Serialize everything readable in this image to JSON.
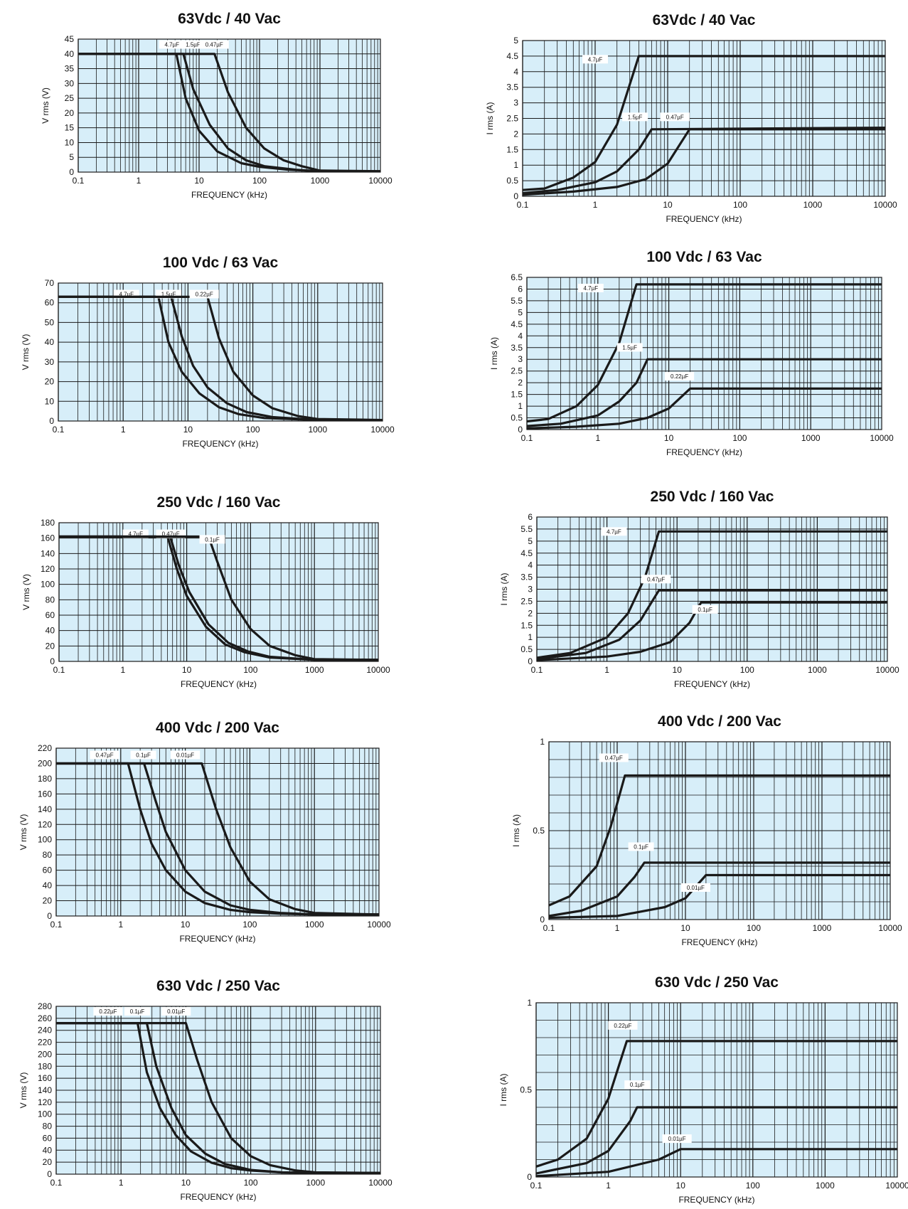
{
  "style": {
    "plot_background": "#d7eef9",
    "curve_color": "#1a1a1a",
    "grid_color": "#1a1a1a"
  },
  "chart_data": [
    {
      "type": "line",
      "title": "63Vdc / 40 Vac",
      "xlabel": "FREQUENCY (kHz)",
      "ylabel": "V rms (V)",
      "xscale": "log",
      "xlim": [
        0.1,
        10000
      ],
      "ylim": [
        0,
        45
      ],
      "xticks": [
        "0.1",
        "1",
        "10",
        "100",
        "1000",
        "10000"
      ],
      "yticks": [
        "0",
        "5",
        "10",
        "15",
        "20",
        "25",
        "30",
        "35",
        "40",
        "45"
      ],
      "series": [
        {
          "name": "4.7µF",
          "x": [
            0.1,
            4.2,
            6,
            10,
            20,
            50,
            100,
            300,
            1000,
            10000
          ],
          "y": [
            40,
            40,
            25,
            14,
            7,
            3,
            1.8,
            0.8,
            0.3,
            0.3
          ]
        },
        {
          "name": "1.5µF",
          "x": [
            0.1,
            5.5,
            8,
            15,
            30,
            60,
            120,
            400,
            1000,
            10000
          ],
          "y": [
            40,
            40,
            28,
            16,
            8,
            4,
            2,
            0.8,
            0.3,
            0.3
          ]
        },
        {
          "name": "0.47µF",
          "x": [
            0.1,
            18,
            30,
            60,
            120,
            250,
            500,
            1000,
            10000
          ],
          "y": [
            40,
            40,
            27,
            15,
            8,
            4,
            2,
            0.5,
            0.3
          ]
        }
      ]
    },
    {
      "type": "line",
      "title": "63Vdc / 40 Vac",
      "xlabel": "FREQUENCY (kHz)",
      "ylabel": "I rms (A)",
      "xscale": "log",
      "xlim": [
        0.1,
        10000
      ],
      "ylim": [
        0,
        5
      ],
      "xticks": [
        "0.1",
        "1",
        "10",
        "100",
        "1000",
        "10000"
      ],
      "yticks": [
        "0",
        "0.5",
        "1",
        "1.5",
        "2",
        "2.5",
        "3",
        "3.5",
        "4",
        "4.5",
        "5"
      ],
      "series": [
        {
          "name": "4.7µF",
          "x": [
            0.1,
            0.2,
            0.5,
            1,
            2,
            4,
            10000
          ],
          "y": [
            0.2,
            0.25,
            0.6,
            1.1,
            2.3,
            4.5,
            4.5
          ]
        },
        {
          "name": "1.5µF",
          "x": [
            0.1,
            0.3,
            1,
            2,
            4,
            6,
            10000
          ],
          "y": [
            0.1,
            0.2,
            0.45,
            0.8,
            1.5,
            2.15,
            2.2
          ]
        },
        {
          "name": "0.47µF",
          "x": [
            0.1,
            0.5,
            2,
            5,
            10,
            20,
            10000
          ],
          "y": [
            0.05,
            0.15,
            0.3,
            0.55,
            1.05,
            2.15,
            2.15
          ]
        }
      ]
    },
    {
      "type": "line",
      "title": "100 Vdc / 63 Vac",
      "xlabel": "FREQUENCY (kHz)",
      "ylabel": "V rms (V)",
      "xscale": "log",
      "xlim": [
        0.1,
        10000
      ],
      "ylim": [
        0,
        70
      ],
      "xticks": [
        "0.1",
        "1",
        "10",
        "100",
        "1000",
        "10000"
      ],
      "yticks": [
        "0",
        "10",
        "20",
        "30",
        "40",
        "50",
        "60",
        "70"
      ],
      "series": [
        {
          "name": "4.7µF",
          "x": [
            0.1,
            3.5,
            5,
            8,
            15,
            30,
            60,
            150,
            1000,
            10000
          ],
          "y": [
            63,
            63,
            40,
            25,
            14,
            7,
            3.5,
            1.5,
            0.5,
            0.5
          ]
        },
        {
          "name": "1.5µF",
          "x": [
            0.1,
            5.5,
            8,
            12,
            20,
            40,
            80,
            200,
            1000,
            10000
          ],
          "y": [
            63,
            63,
            43,
            28,
            17,
            9,
            4.5,
            2,
            0.5,
            0.5
          ]
        },
        {
          "name": "0.22µF",
          "x": [
            0.1,
            20,
            30,
            50,
            100,
            200,
            500,
            1000,
            10000
          ],
          "y": [
            63,
            63,
            42,
            25,
            13,
            6.5,
            2.5,
            1,
            0.5
          ]
        }
      ]
    },
    {
      "type": "line",
      "title": "100 Vdc / 63 Vac",
      "xlabel": "FREQUENCY (kHz)",
      "ylabel": "I rms (A)",
      "xscale": "log",
      "xlim": [
        0.1,
        10000
      ],
      "ylim": [
        0,
        6.5
      ],
      "xticks": [
        "0.1",
        "1",
        "10",
        "100",
        "1000",
        "10000"
      ],
      "yticks": [
        "0",
        "0.5",
        "1",
        "1.5",
        "2",
        "2.5",
        "3",
        "3.5",
        "4",
        "4.5",
        "5",
        "5.5",
        "6",
        "6.5"
      ],
      "series": [
        {
          "name": "4.7µF",
          "x": [
            0.1,
            0.2,
            0.5,
            1,
            2,
            3.5,
            10000
          ],
          "y": [
            0.35,
            0.45,
            1.0,
            1.9,
            3.7,
            6.2,
            6.2
          ]
        },
        {
          "name": "1.5µF",
          "x": [
            0.1,
            0.3,
            1,
            2,
            3.5,
            5,
            10000
          ],
          "y": [
            0.15,
            0.25,
            0.6,
            1.2,
            2.0,
            3.0,
            3.0
          ]
        },
        {
          "name": "0.22µF",
          "x": [
            0.1,
            0.5,
            2,
            5,
            10,
            20,
            10000
          ],
          "y": [
            0.05,
            0.12,
            0.25,
            0.5,
            0.9,
            1.75,
            1.75
          ]
        }
      ]
    },
    {
      "type": "line",
      "title": "250 Vdc / 160 Vac",
      "xlabel": "FREQUENCY (kHz)",
      "ylabel": "V rms (V)",
      "xscale": "log",
      "xlim": [
        0.1,
        10000
      ],
      "ylim": [
        0,
        180
      ],
      "xticks": [
        "0.1",
        "1",
        "10",
        "100",
        "1000",
        "10000"
      ],
      "yticks": [
        "0",
        "20",
        "40",
        "60",
        "80",
        "100",
        "120",
        "140",
        "160",
        "180"
      ],
      "series": [
        {
          "name": "4.7µF",
          "x": [
            0.1,
            5,
            7,
            10,
            20,
            40,
            80,
            200,
            1000,
            10000
          ],
          "y": [
            162,
            162,
            120,
            85,
            45,
            22,
            12,
            5,
            2,
            2
          ]
        },
        {
          "name": "0.47µF",
          "x": [
            0.1,
            5.5,
            7.5,
            11,
            22,
            45,
            90,
            200,
            1000,
            10000
          ],
          "y": [
            162,
            162,
            125,
            90,
            48,
            24,
            13,
            6,
            2,
            2
          ]
        },
        {
          "name": "0.1µF",
          "x": [
            0.1,
            22,
            30,
            50,
            100,
            200,
            500,
            1000,
            10000
          ],
          "y": [
            162,
            162,
            130,
            80,
            42,
            20,
            8,
            3,
            2
          ]
        }
      ]
    },
    {
      "type": "line",
      "title": "250 Vdc / 160 Vac",
      "xlabel": "FREQUENCY (kHz)",
      "ylabel": "I rms (A)",
      "xscale": "log",
      "xlim": [
        0.1,
        10000
      ],
      "ylim": [
        0,
        6
      ],
      "xticks": [
        "0.1",
        "1",
        "10",
        "100",
        "1000",
        "10000"
      ],
      "yticks": [
        "0",
        "0.5",
        "1",
        "1.5",
        "2",
        "2.5",
        "3",
        "3.5",
        "4",
        "4.5",
        "5",
        "5.5",
        "6"
      ],
      "series": [
        {
          "name": "4.7µF",
          "x": [
            0.1,
            0.3,
            1,
            2,
            3.5,
            5.5,
            10000
          ],
          "y": [
            0.15,
            0.35,
            1.0,
            2.0,
            3.5,
            5.4,
            5.4
          ]
        },
        {
          "name": "0.47µF",
          "x": [
            0.1,
            0.5,
            1.5,
            3,
            5.5,
            10000
          ],
          "y": [
            0.1,
            0.35,
            0.9,
            1.7,
            2.95,
            2.95
          ]
        },
        {
          "name": "0.1µF",
          "x": [
            0.1,
            1,
            3,
            8,
            15,
            22,
            10000
          ],
          "y": [
            0.05,
            0.2,
            0.4,
            0.8,
            1.6,
            2.45,
            2.45
          ]
        }
      ]
    },
    {
      "type": "line",
      "title": "400 Vdc / 200 Vac",
      "xlabel": "FREQUENCY (kHz)",
      "ylabel": "V rms (V)",
      "xscale": "log",
      "xlim": [
        0.1,
        10000
      ],
      "ylim": [
        0,
        220
      ],
      "xticks": [
        "0.1",
        "1",
        "10",
        "100",
        "1000",
        "10000"
      ],
      "yticks": [
        "0",
        "20",
        "40",
        "60",
        "80",
        "100",
        "120",
        "140",
        "160",
        "180",
        "200",
        "220"
      ],
      "series": [
        {
          "name": "0.47µF",
          "x": [
            0.1,
            1.3,
            2,
            3,
            5,
            10,
            20,
            50,
            100,
            300,
            1000,
            10000
          ],
          "y": [
            200,
            200,
            140,
            95,
            60,
            32,
            17,
            8,
            5,
            3,
            2,
            2
          ]
        },
        {
          "name": "0.1µF",
          "x": [
            0.1,
            2.3,
            3.5,
            5,
            10,
            20,
            50,
            100,
            300,
            1000,
            10000
          ],
          "y": [
            200,
            200,
            150,
            110,
            60,
            32,
            14,
            8,
            4,
            2,
            2
          ]
        },
        {
          "name": "0.01µF",
          "x": [
            0.1,
            18,
            30,
            50,
            100,
            200,
            500,
            1000,
            10000
          ],
          "y": [
            200,
            200,
            140,
            90,
            45,
            22,
            9,
            4,
            2
          ]
        }
      ]
    },
    {
      "type": "line",
      "title": "400 Vdc / 200 Vac",
      "xlabel": "FREQUENCY (kHz)",
      "ylabel": "I rms (A)",
      "xscale": "log",
      "xlim": [
        0.1,
        10000
      ],
      "ylim": [
        0,
        1
      ],
      "xticks": [
        "0.1",
        "1",
        "10",
        "100",
        "1000",
        "10000"
      ],
      "yticks": [
        "0",
        "0.5",
        "1"
      ],
      "series": [
        {
          "name": "0.47µF",
          "x": [
            0.1,
            0.2,
            0.5,
            0.8,
            1.3,
            10000
          ],
          "y": [
            0.08,
            0.13,
            0.3,
            0.52,
            0.81,
            0.81
          ]
        },
        {
          "name": "0.1µF",
          "x": [
            0.1,
            0.3,
            1,
            1.8,
            2.5,
            10000
          ],
          "y": [
            0.02,
            0.05,
            0.13,
            0.24,
            0.32,
            0.32
          ]
        },
        {
          "name": "0.01µF",
          "x": [
            0.1,
            1,
            5,
            10,
            20,
            10000
          ],
          "y": [
            0.01,
            0.02,
            0.07,
            0.12,
            0.25,
            0.25
          ]
        }
      ]
    },
    {
      "type": "line",
      "title": "630 Vdc / 250 Vac",
      "xlabel": "FREQUENCY (kHz)",
      "ylabel": "V rms (V)",
      "xscale": "log",
      "xlim": [
        0.1,
        10000
      ],
      "ylim": [
        0,
        280
      ],
      "xticks": [
        "0.1",
        "1",
        "10",
        "100",
        "1000",
        "10000"
      ],
      "yticks": [
        "0",
        "20",
        "40",
        "60",
        "80",
        "100",
        "120",
        "140",
        "160",
        "180",
        "200",
        "220",
        "240",
        "260",
        "280"
      ],
      "series": [
        {
          "name": "0.22µF",
          "x": [
            0.1,
            1.8,
            2.5,
            4,
            7,
            12,
            25,
            50,
            100,
            300,
            1000,
            10000
          ],
          "y": [
            252,
            252,
            170,
            110,
            65,
            38,
            19,
            10,
            6,
            3,
            2,
            2
          ]
        },
        {
          "name": "0.1µF",
          "x": [
            0.1,
            2.5,
            3.5,
            6,
            10,
            20,
            40,
            100,
            300,
            1000,
            10000
          ],
          "y": [
            252,
            252,
            180,
            110,
            65,
            34,
            17,
            7,
            3,
            2,
            2
          ]
        },
        {
          "name": "0.01µF",
          "x": [
            0.1,
            10,
            15,
            25,
            50,
            100,
            200,
            500,
            1000,
            10000
          ],
          "y": [
            252,
            252,
            190,
            120,
            60,
            30,
            15,
            6,
            3,
            2
          ]
        }
      ]
    },
    {
      "type": "line",
      "title": "630 Vdc / 250 Vac",
      "xlabel": "FREQUENCY (kHz)",
      "ylabel": "I rms (A)",
      "xscale": "log",
      "xlim": [
        0.1,
        10000
      ],
      "ylim": [
        0,
        1
      ],
      "xticks": [
        "0.1",
        "1",
        "10",
        "100",
        "1000",
        "10000"
      ],
      "yticks": [
        "0",
        "0.5",
        "1"
      ],
      "series": [
        {
          "name": "0.22µF",
          "x": [
            0.1,
            0.2,
            0.5,
            1,
            1.8,
            10000
          ],
          "y": [
            0.06,
            0.1,
            0.22,
            0.45,
            0.78,
            0.78
          ]
        },
        {
          "name": "0.1µF",
          "x": [
            0.1,
            0.5,
            1,
            2,
            2.5,
            10000
          ],
          "y": [
            0.02,
            0.08,
            0.15,
            0.32,
            0.4,
            0.4
          ]
        },
        {
          "name": "0.01µF",
          "x": [
            0.1,
            1,
            5,
            10,
            10000
          ],
          "y": [
            0.005,
            0.03,
            0.1,
            0.16,
            0.16
          ]
        }
      ]
    }
  ]
}
